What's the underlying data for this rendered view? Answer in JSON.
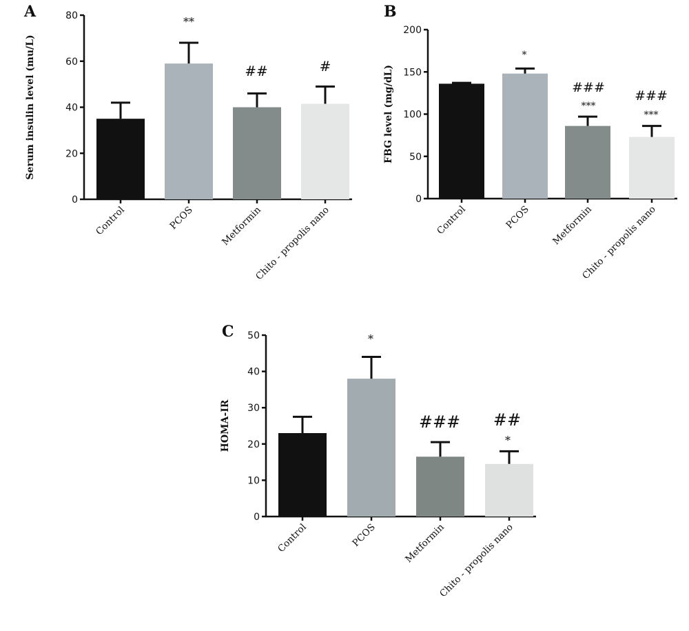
{
  "chart_data": [
    {
      "type": "bar",
      "panel": "A",
      "ylabel": "Serum insulin level (mu/L)",
      "ylim": [
        0,
        80
      ],
      "yticks": [
        0,
        20,
        40,
        60,
        80
      ],
      "categories": [
        "Control",
        "PCOS",
        "Metformin",
        "Chito - propolis nano"
      ],
      "values": [
        35,
        59,
        40,
        41.5
      ],
      "errors": [
        7,
        9,
        6,
        7.5
      ],
      "colors": [
        "#111111",
        "#a9b3b9",
        "#848c8b",
        "#e5e6e6"
      ],
      "annotations": [
        [],
        [
          "**"
        ],
        [
          "##"
        ],
        [
          "#"
        ]
      ]
    },
    {
      "type": "bar",
      "panel": "B",
      "ylabel": "FBG level (mg/dL)",
      "ylim": [
        0,
        200
      ],
      "yticks": [
        0,
        50,
        100,
        150,
        200
      ],
      "categories": [
        "Control",
        "PCOS",
        "Metformin",
        "Chito - propolis nano"
      ],
      "values": [
        136,
        148,
        86,
        73
      ],
      "errors": [
        1,
        6,
        11,
        13
      ],
      "colors": [
        "#111111",
        "#a9b3b9",
        "#848c8b",
        "#e5e6e6"
      ],
      "annotations": [
        [],
        [
          "*"
        ],
        [
          "###",
          "***"
        ],
        [
          "###",
          "***"
        ]
      ]
    },
    {
      "type": "bar",
      "panel": "C",
      "ylabel": "HOMA-IR",
      "ylim": [
        0,
        50
      ],
      "yticks": [
        0,
        10,
        20,
        30,
        40,
        50
      ],
      "categories": [
        "Control",
        "PCOS",
        "Metformin",
        "Chito - propolis nano"
      ],
      "values": [
        23,
        38,
        16.5,
        14.5
      ],
      "errors": [
        4.5,
        6,
        4,
        3.5
      ],
      "colors": [
        "#111111",
        "#a2abb0",
        "#7e8784",
        "#dfe1e1"
      ],
      "annotations": [
        [],
        [
          "*"
        ],
        [
          "###"
        ],
        [
          "##",
          "*"
        ]
      ]
    }
  ]
}
